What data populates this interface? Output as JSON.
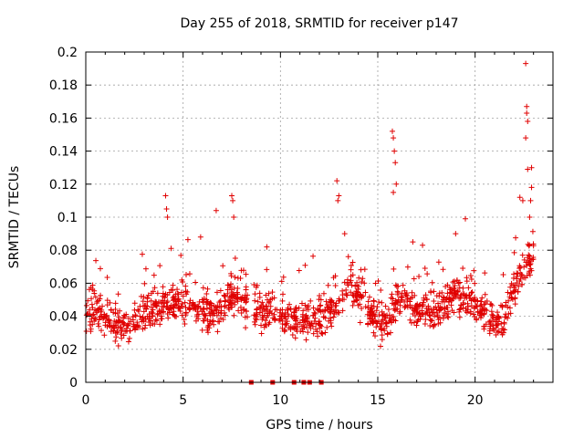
{
  "chart_data": {
    "type": "scatter",
    "title": "Day 255 of 2018, SRMTID for receiver p147",
    "xlabel": "GPS time / hours",
    "ylabel": "SRMTID / TECUs",
    "xlim": [
      0,
      24
    ],
    "ylim": [
      0,
      0.2
    ],
    "x_ticks": [
      0,
      5,
      10,
      15,
      20
    ],
    "x_tick_labels": [
      "0",
      "5",
      "10",
      "15",
      "20"
    ],
    "y_ticks": [
      0,
      0.02,
      0.04,
      0.06,
      0.08,
      0.1,
      0.12,
      0.14,
      0.16,
      0.18,
      0.2
    ],
    "y_tick_labels": [
      "0",
      "0.02",
      "0.04",
      "0.06",
      "0.08",
      "0.1",
      "0.12",
      "0.14",
      "0.16",
      "0.18",
      "0.2"
    ],
    "grid": true,
    "marker": "+",
    "series_color": "#e00000",
    "zero_markers_x": [
      8.5,
      9.6,
      10.7,
      11.2,
      11.5,
      12.1
    ],
    "trend": [
      [
        0.0,
        0.042
      ],
      [
        0.5,
        0.046
      ],
      [
        1.0,
        0.038
      ],
      [
        1.5,
        0.036
      ],
      [
        2.0,
        0.035
      ],
      [
        2.5,
        0.037
      ],
      [
        3.0,
        0.041
      ],
      [
        3.5,
        0.044
      ],
      [
        4.0,
        0.048
      ],
      [
        4.5,
        0.046
      ],
      [
        5.0,
        0.05
      ],
      [
        5.5,
        0.046
      ],
      [
        6.0,
        0.045
      ],
      [
        6.5,
        0.043
      ],
      [
        7.0,
        0.046
      ],
      [
        7.5,
        0.052
      ],
      [
        8.0,
        0.05
      ],
      [
        8.4,
        0.048
      ],
      [
        8.6,
        0.045
      ],
      [
        9.0,
        0.042
      ],
      [
        9.5,
        0.045
      ],
      [
        10.0,
        0.041
      ],
      [
        10.5,
        0.038
      ],
      [
        11.0,
        0.038
      ],
      [
        11.5,
        0.037
      ],
      [
        12.0,
        0.039
      ],
      [
        12.5,
        0.044
      ],
      [
        13.0,
        0.048
      ],
      [
        13.5,
        0.058
      ],
      [
        14.0,
        0.055
      ],
      [
        14.5,
        0.045
      ],
      [
        15.0,
        0.038
      ],
      [
        15.5,
        0.035
      ],
      [
        16.0,
        0.05
      ],
      [
        16.5,
        0.048
      ],
      [
        17.0,
        0.044
      ],
      [
        17.5,
        0.046
      ],
      [
        18.0,
        0.044
      ],
      [
        18.5,
        0.048
      ],
      [
        19.0,
        0.052
      ],
      [
        19.5,
        0.05
      ],
      [
        20.0,
        0.048
      ],
      [
        20.5,
        0.042
      ],
      [
        21.0,
        0.035
      ],
      [
        21.5,
        0.04
      ],
      [
        22.0,
        0.058
      ],
      [
        22.5,
        0.068
      ],
      [
        23.0,
        0.075
      ]
    ],
    "spikes": [
      [
        4.1,
        0.113
      ],
      [
        4.15,
        0.105
      ],
      [
        4.2,
        0.1
      ],
      [
        6.7,
        0.104
      ],
      [
        7.5,
        0.113
      ],
      [
        7.55,
        0.11
      ],
      [
        7.6,
        0.1
      ],
      [
        12.9,
        0.122
      ],
      [
        13.0,
        0.113
      ],
      [
        12.95,
        0.11
      ],
      [
        15.75,
        0.152
      ],
      [
        15.8,
        0.148
      ],
      [
        15.85,
        0.14
      ],
      [
        15.9,
        0.133
      ],
      [
        15.95,
        0.12
      ],
      [
        15.8,
        0.115
      ],
      [
        19.5,
        0.099
      ],
      [
        19.0,
        0.09
      ],
      [
        22.3,
        0.112
      ],
      [
        22.45,
        0.11
      ],
      [
        22.6,
        0.193
      ],
      [
        22.65,
        0.167
      ],
      [
        22.65,
        0.163
      ],
      [
        22.7,
        0.158
      ],
      [
        22.6,
        0.148
      ],
      [
        22.7,
        0.129
      ],
      [
        22.9,
        0.13
      ],
      [
        22.9,
        0.118
      ],
      [
        22.85,
        0.11
      ],
      [
        22.8,
        0.1
      ],
      [
        13.3,
        0.09
      ],
      [
        16.8,
        0.085
      ],
      [
        17.3,
        0.083
      ],
      [
        5.9,
        0.088
      ],
      [
        9.3,
        0.082
      ]
    ],
    "point_count": 1400
  }
}
